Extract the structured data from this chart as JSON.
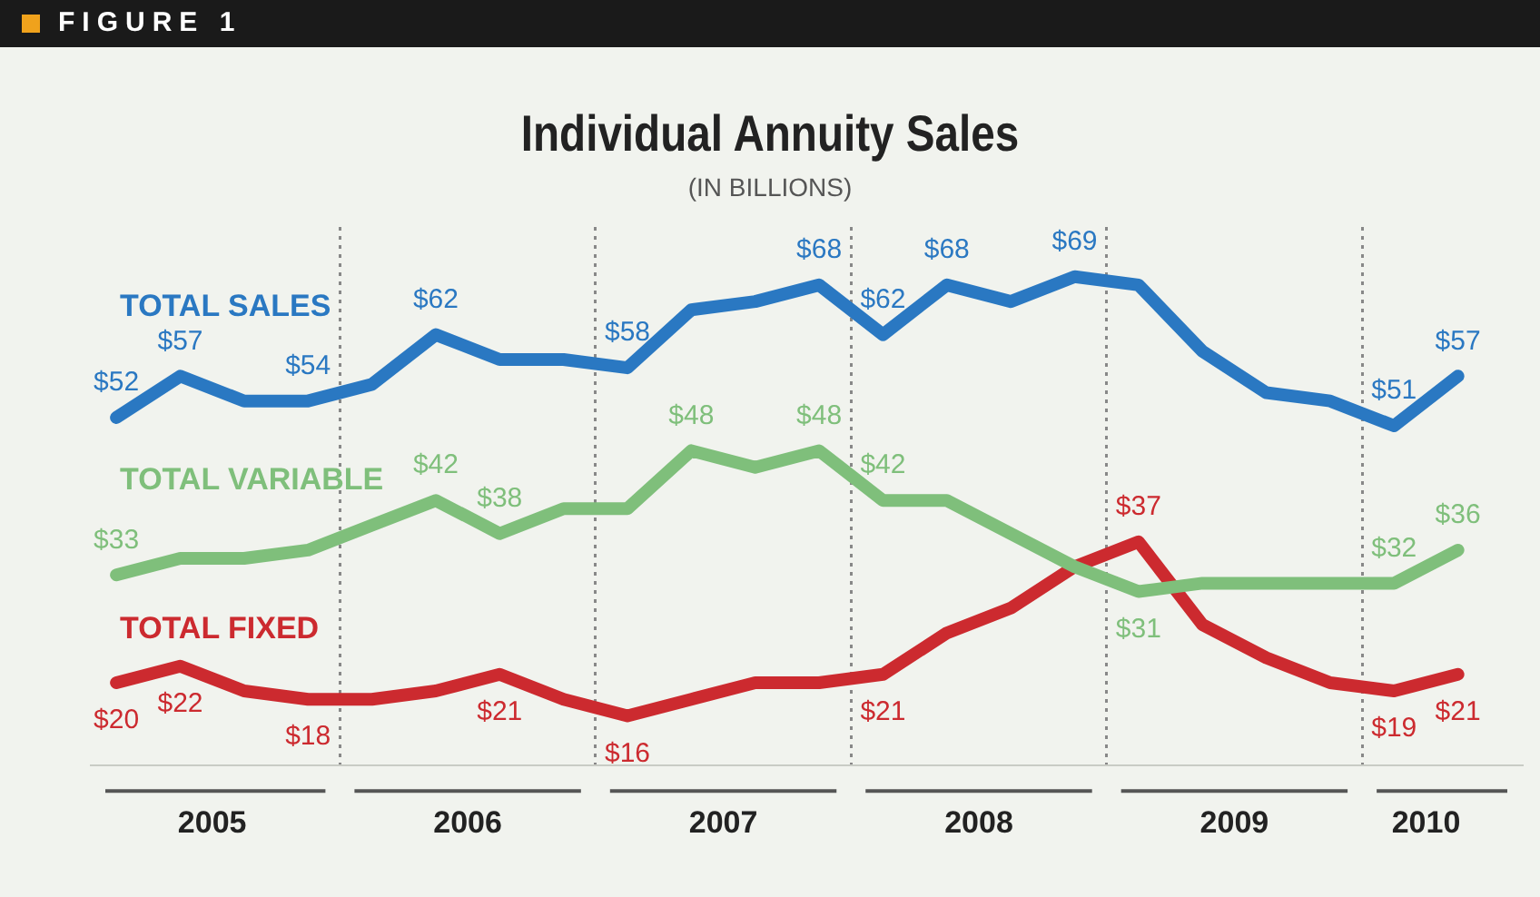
{
  "chart_data": {
    "type": "line",
    "title": "Individual Annuity Sales",
    "subtitle": "(IN BILLIONS)",
    "annotations": [
      "FIGURE 1"
    ],
    "x": [
      2005,
      2005.25,
      2005.5,
      2005.75,
      2006,
      2006.25,
      2006.5,
      2006.75,
      2007,
      2007.25,
      2007.5,
      2007.75,
      2008,
      2008.25,
      2008.5,
      2008.75,
      2009,
      2009.25,
      2009.5,
      2009.75,
      2010,
      2010.25
    ],
    "xlim": [
      2004.9,
      2010.5
    ],
    "xticks": [
      {
        "value": 2005.375,
        "label": "2005"
      },
      {
        "value": 2005.875,
        "label": null
      },
      {
        "value": 2006.375,
        "label": "2006"
      },
      {
        "value": 2006.875,
        "label": null
      },
      {
        "value": 2007.375,
        "label": "2007"
      },
      {
        "value": 2007.875,
        "label": null
      },
      {
        "value": 2008.375,
        "label": "2008"
      },
      {
        "value": 2008.875,
        "label": null
      },
      {
        "value": 2009.375,
        "label": "2009"
      },
      {
        "value": 2009.875,
        "label": null
      },
      {
        "value": 2010.125,
        "label": "2010"
      }
    ],
    "ylim": [
      10,
      75
    ],
    "tick_labels": "x",
    "grid": "x",
    "legend": false,
    "marker": "none",
    "line_style": "solid",
    "series": [
      {
        "name": "TOTAL SALES",
        "color": "#2a78c2",
        "values": [
          52,
          57,
          54,
          54,
          56,
          62,
          59,
          59,
          58,
          65,
          66,
          68,
          62,
          68,
          66,
          69,
          68,
          60,
          55,
          54,
          51,
          57
        ],
        "value_labels": [
          "$52",
          "$57",
          null,
          "$54",
          null,
          "$62",
          null,
          null,
          "$58",
          null,
          null,
          "$68",
          "$62",
          "$68",
          null,
          "$69",
          null,
          null,
          null,
          null,
          "$51",
          "$57"
        ]
      },
      {
        "name": "TOTAL VARIABLE",
        "color": "#7fbf7b",
        "values": [
          33,
          35,
          35,
          36,
          39,
          42,
          38,
          41,
          41,
          48,
          46,
          48,
          42,
          42,
          38,
          34,
          31,
          32,
          32,
          32,
          32,
          36
        ],
        "value_labels": [
          "$33",
          null,
          null,
          null,
          null,
          "$42",
          "$38",
          null,
          null,
          "$48",
          null,
          "$48",
          "$42",
          null,
          null,
          null,
          "$31",
          null,
          null,
          null,
          "$32",
          "$36"
        ]
      },
      {
        "name": "TOTAL FIXED",
        "color": "#cc2a2f",
        "values": [
          20,
          22,
          19,
          18,
          18,
          19,
          21,
          18,
          16,
          18,
          20,
          20,
          21,
          26,
          29,
          34,
          37,
          27,
          23,
          20,
          19,
          21
        ],
        "value_labels": [
          "$20",
          "$22",
          null,
          "$18",
          null,
          null,
          "$21",
          null,
          "$16",
          null,
          null,
          null,
          "$21",
          null,
          null,
          null,
          "$37",
          null,
          null,
          null,
          "$19",
          "$21"
        ]
      }
    ]
  }
}
